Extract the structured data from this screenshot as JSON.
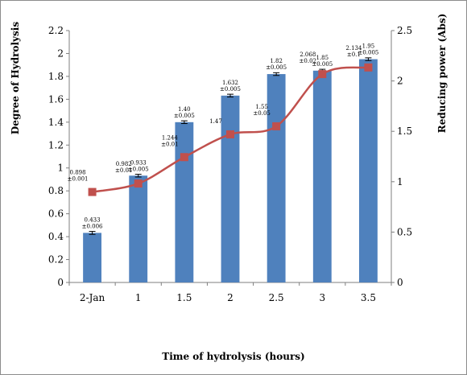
{
  "chart_data": {
    "type": "bar",
    "xlabel": "Time of hydrolysis (hours)",
    "ylabel": "Degree of Hydrolysis",
    "y2label": "Reducing power (Abs)",
    "categories": [
      "2-Jan",
      "1",
      "1.5",
      "2",
      "2.5",
      "3",
      "3.5"
    ],
    "ylim": [
      0,
      2.2
    ],
    "y2lim": [
      0,
      2.5
    ],
    "yticks": [
      "0",
      "0.2",
      "0.4",
      "0.6",
      "0.8",
      "1",
      "1.2",
      "1.4",
      "1.6",
      "1.8",
      "2",
      "2.2"
    ],
    "y2ticks": [
      "0",
      "0.5",
      "1",
      "1.5",
      "2",
      "2.5"
    ],
    "grid": false,
    "colors": {
      "bars": "#4f81bd",
      "line": "#c0504d"
    },
    "series": [
      {
        "kind": "bar",
        "axis": "left",
        "values": [
          0.433,
          0.933,
          1.4,
          1.632,
          1.82,
          1.85,
          1.95
        ],
        "errors": [
          0.006,
          0.005,
          0.005,
          0.005,
          0.005,
          0.005,
          0.005
        ],
        "labels": [
          "0.433\n±0.006",
          "0.933\n±0.005",
          "1.40\n±0.005",
          "1.632\n±0.005",
          "1.82\n±0.005",
          "1.85\n±0.005",
          "1.95\n±0.005"
        ]
      },
      {
        "kind": "line",
        "axis": "right",
        "values": [
          0.898,
          0.982,
          1.244,
          1.47,
          1.55,
          2.068,
          2.134
        ],
        "labels": [
          "0.898\n±0.001",
          "0.982\n±0.01",
          "1.244\n±0.01",
          "1.47",
          "1.55\n±0.05",
          "2.068\n±0.02",
          "2.134\n±0.1"
        ]
      }
    ]
  }
}
